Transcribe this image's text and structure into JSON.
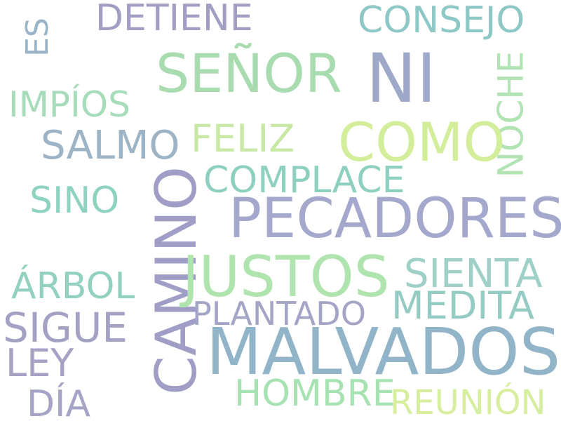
{
  "word_cloud": {
    "words": [
      {
        "text": "ES",
        "color": "#99b4c6"
      },
      {
        "text": "DETIENE",
        "color": "#a09ec2"
      },
      {
        "text": "CONSEJO",
        "color": "#8ec8c6"
      },
      {
        "text": "SEÑOR",
        "color": "#a8dcb0"
      },
      {
        "text": "NI",
        "color": "#9ea8c8"
      },
      {
        "text": "NOCHE",
        "color": "#b2e3b2"
      },
      {
        "text": "IMPÍOS",
        "color": "#a6dcba"
      },
      {
        "text": "SALMO",
        "color": "#9cb4c6"
      },
      {
        "text": "FELIZ",
        "color": "#c8e8a6"
      },
      {
        "text": "COMO",
        "color": "#d2ee9a"
      },
      {
        "text": "COMPLACE",
        "color": "#8ed0c0"
      },
      {
        "text": "SINO",
        "color": "#8ed2c0"
      },
      {
        "text": "CAMINO",
        "color": "#a09ec6"
      },
      {
        "text": "PECADORES",
        "color": "#a3a8cc"
      },
      {
        "text": "ÁRBOL",
        "color": "#92d0c0"
      },
      {
        "text": "JUSTOS",
        "color": "#b0e4ae"
      },
      {
        "text": "SIENTA",
        "color": "#9ed0c8"
      },
      {
        "text": "PLANTADO",
        "color": "#a4a4c6"
      },
      {
        "text": "MEDITA",
        "color": "#94ccc4"
      },
      {
        "text": "SIGUE",
        "color": "#a4a2c4"
      },
      {
        "text": "MALVADOS",
        "color": "#92b4c8"
      },
      {
        "text": "LEY",
        "color": "#a6a2c6"
      },
      {
        "text": "HOMBRE",
        "color": "#a6e2b2"
      },
      {
        "text": "DÍA",
        "color": "#a6a4c6"
      },
      {
        "text": "REUNIÓN",
        "color": "#d6ee9e"
      }
    ]
  }
}
